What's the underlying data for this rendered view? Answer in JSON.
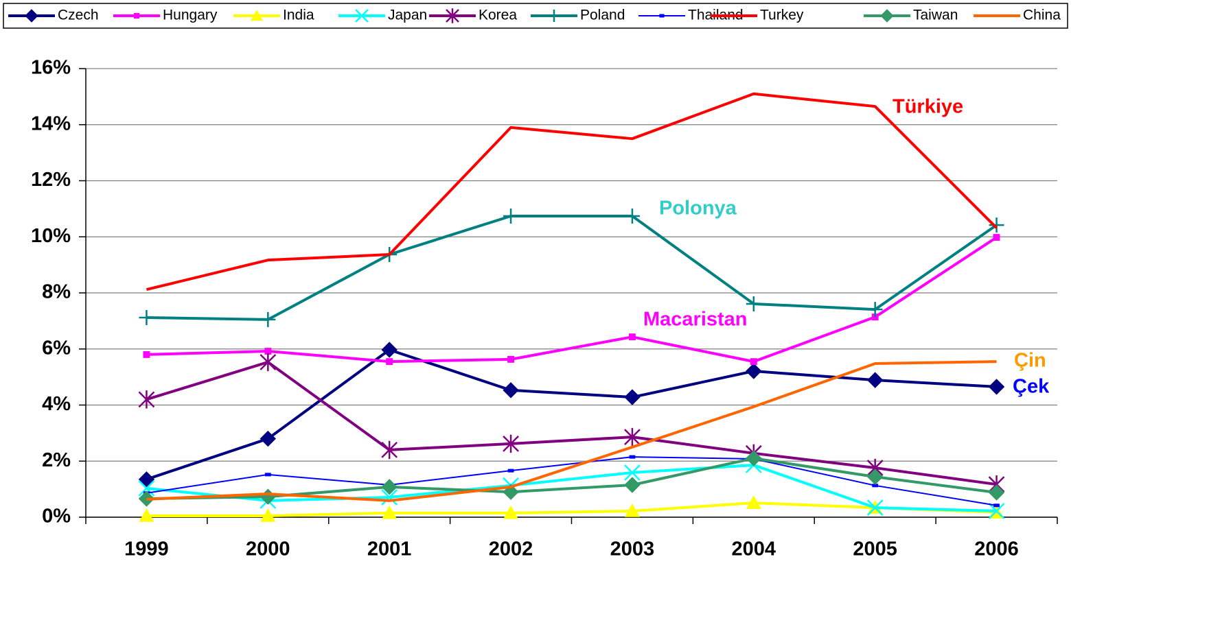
{
  "chart_data": {
    "type": "line",
    "categories": [
      "1999",
      "2000",
      "2001",
      "2002",
      "2003",
      "2004",
      "2005",
      "2006"
    ],
    "ylim": [
      0,
      16
    ],
    "yticks": [
      {
        "value": 0,
        "label": "0%"
      },
      {
        "value": 2,
        "label": "2%"
      },
      {
        "value": 4,
        "label": "4%"
      },
      {
        "value": 6,
        "label": "6%"
      },
      {
        "value": 8,
        "label": "8%"
      },
      {
        "value": 10,
        "label": "10%"
      },
      {
        "value": 12,
        "label": "12%"
      },
      {
        "value": 14,
        "label": "14%"
      },
      {
        "value": 16,
        "label": "16%"
      }
    ],
    "grid": true,
    "legend": "top",
    "series": [
      {
        "name": "Czech",
        "color": "#000080",
        "marker": "diamond",
        "line_width": 4,
        "values": [
          1.35,
          2.8,
          5.97,
          4.53,
          4.28,
          5.21,
          4.89,
          4.65
        ]
      },
      {
        "name": "Hungary",
        "color": "#ff00ff",
        "marker": "square",
        "line_width": 4,
        "values": [
          5.8,
          5.92,
          5.55,
          5.63,
          6.43,
          5.55,
          7.14,
          9.98
        ]
      },
      {
        "name": "India",
        "color": "#ffff00",
        "marker": "triangle",
        "line_width": 4,
        "values": [
          0.05,
          0.05,
          0.15,
          0.15,
          0.22,
          0.51,
          0.34,
          0.17
        ]
      },
      {
        "name": "Japan",
        "color": "#00ffff",
        "marker": "x",
        "line_width": 4,
        "values": [
          1.03,
          0.59,
          0.71,
          1.13,
          1.59,
          1.86,
          0.34,
          0.22
        ]
      },
      {
        "name": "Korea",
        "color": "#800080",
        "marker": "star",
        "line_width": 4,
        "values": [
          4.2,
          5.53,
          2.4,
          2.62,
          2.86,
          2.28,
          1.76,
          1.17
        ]
      },
      {
        "name": "Poland",
        "color": "#008080",
        "marker": "plus",
        "line_width": 4,
        "values": [
          7.12,
          7.05,
          9.37,
          10.74,
          10.74,
          7.61,
          7.41,
          10.42
        ]
      },
      {
        "name": "Thailand",
        "color": "#0000ff",
        "marker": "dash",
        "line_width": 2,
        "values": [
          0.86,
          1.52,
          1.15,
          1.66,
          2.15,
          2.08,
          1.13,
          0.42
        ]
      },
      {
        "name": "Turkey",
        "color": "#ff0000",
        "marker": "none",
        "line_width": 4,
        "values": [
          8.12,
          9.17,
          9.37,
          13.9,
          13.5,
          15.1,
          14.65,
          10.32
        ]
      },
      {
        "name": "Taiwan",
        "color": "#339966",
        "marker": "diamond",
        "line_width": 4,
        "values": [
          0.66,
          0.73,
          1.08,
          0.9,
          1.15,
          2.1,
          1.44,
          0.88
        ]
      },
      {
        "name": "China",
        "color": "#ff6600",
        "marker": "none",
        "line_width": 4,
        "values": [
          0.64,
          0.83,
          0.59,
          1.08,
          2.5,
          3.94,
          5.48,
          5.55
        ]
      }
    ],
    "annotations": [
      {
        "text": "Türkiye",
        "color": "#ff0000"
      },
      {
        "text": "Polonya",
        "color": "#33cccc"
      },
      {
        "text": "Macaristan",
        "color": "#ff00ff"
      },
      {
        "text": "Çin",
        "color": "#ff9900"
      },
      {
        "text": "Çek",
        "color": "#0000ff"
      }
    ]
  }
}
